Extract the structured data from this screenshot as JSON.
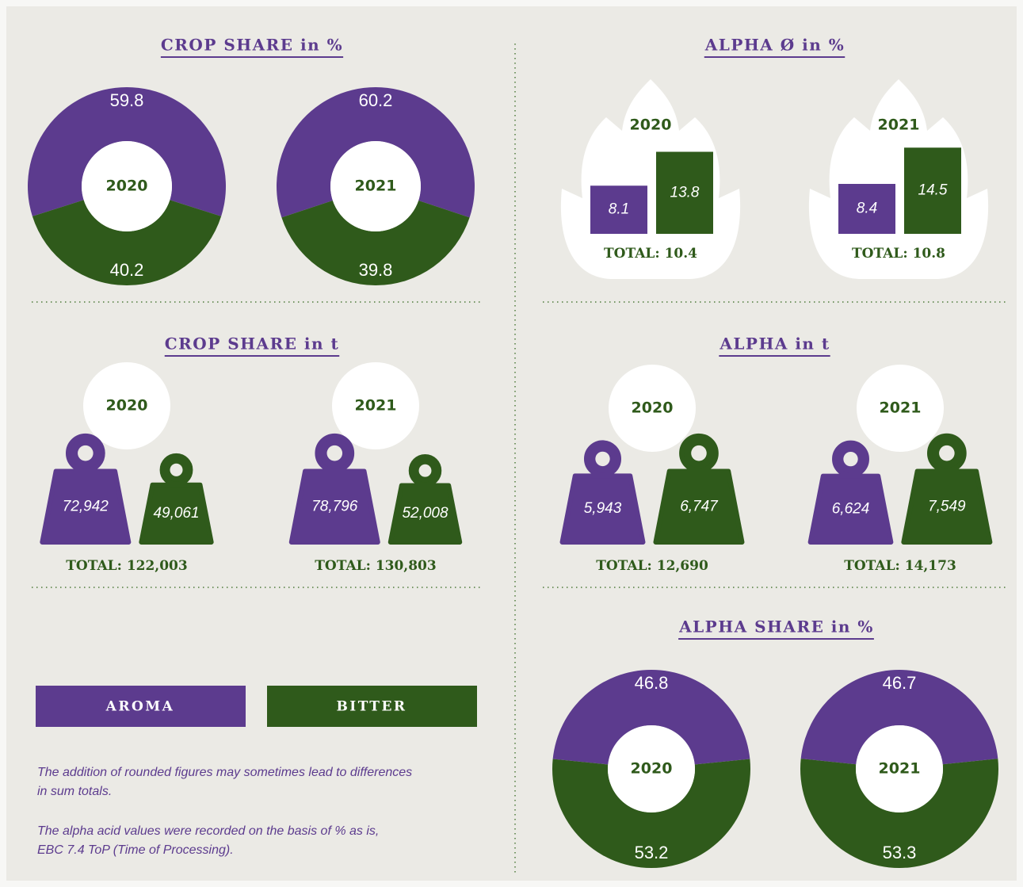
{
  "chart_data": [
    {
      "type": "donut",
      "title": "CROP SHARE in %",
      "categories": [
        "2020",
        "2021"
      ],
      "series": [
        {
          "name": "AROMA",
          "color": "#5c3b8e",
          "values": [
            59.8,
            60.2
          ]
        },
        {
          "name": "BITTER",
          "color": "#2f5a1b",
          "values": [
            40.2,
            39.8
          ]
        }
      ]
    },
    {
      "type": "bar",
      "title": "ALPHA Ø in %",
      "categories": [
        "2020",
        "2021"
      ],
      "series": [
        {
          "color": "#5c3b8e",
          "values": [
            8.1,
            8.4
          ]
        },
        {
          "color": "#2f5a1b",
          "values": [
            13.8,
            14.5
          ]
        }
      ],
      "total_prefix": "TOTAL:",
      "totals": [
        10.4,
        10.8
      ]
    },
    {
      "type": "weight",
      "title": "CROP SHARE in t",
      "categories": [
        "2020",
        "2021"
      ],
      "series": [
        {
          "color": "#5c3b8e",
          "values": [
            72942,
            78796
          ],
          "value_labels": [
            "72,942",
            "78,796"
          ]
        },
        {
          "color": "#2f5a1b",
          "values": [
            49061,
            52008
          ],
          "value_labels": [
            "49,061",
            "52,008"
          ]
        }
      ],
      "total_prefix": "TOTAL:",
      "totals": [
        122003,
        130803
      ],
      "total_labels": [
        "122,003",
        "130,803"
      ]
    },
    {
      "type": "weight",
      "title": "ALPHA in t",
      "categories": [
        "2020",
        "2021"
      ],
      "series": [
        {
          "color": "#5c3b8e",
          "values": [
            5943,
            6624
          ],
          "value_labels": [
            "5,943",
            "6,624"
          ]
        },
        {
          "color": "#2f5a1b",
          "values": [
            6747,
            7549
          ],
          "value_labels": [
            "6,747",
            "7,549"
          ]
        }
      ],
      "total_prefix": "TOTAL:",
      "totals": [
        12690,
        14173
      ],
      "total_labels": [
        "12,690",
        "14,173"
      ]
    },
    {
      "type": "donut",
      "title": "ALPHA SHARE in %",
      "categories": [
        "2020",
        "2021"
      ],
      "series": [
        {
          "color": "#5c3b8e",
          "values": [
            46.8,
            46.7
          ]
        },
        {
          "color": "#2f5a1b",
          "values": [
            53.2,
            53.3
          ]
        }
      ]
    }
  ],
  "notes": [
    [
      "The addition of rounded figures may sometimes lead to differences",
      "in sum totals."
    ],
    [
      "The alpha acid values were recorded on the basis of % as is,",
      "EBC 7.4 ToP (Time of Processing)."
    ]
  ]
}
